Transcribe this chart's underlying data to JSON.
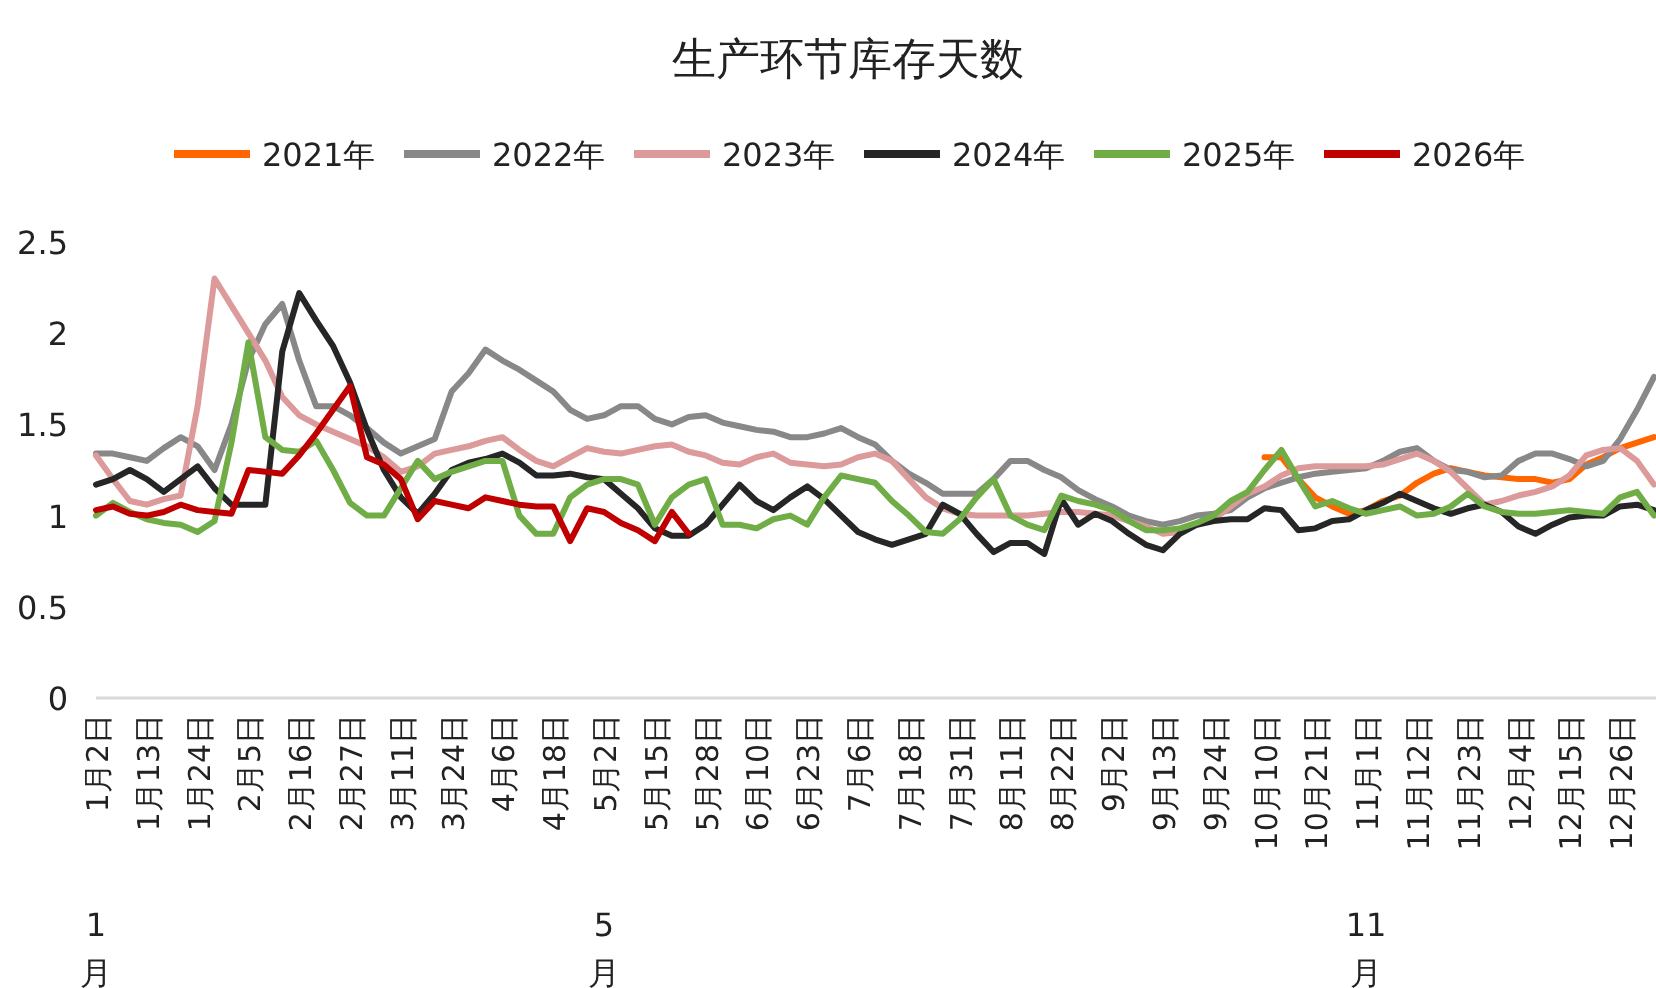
{
  "chart_data": {
    "type": "line",
    "title": "生产环节库存天数",
    "legend": "top",
    "categories": [
      "1月2日",
      null,
      null,
      "1月13日",
      null,
      null,
      "1月24日",
      null,
      null,
      "2月5日",
      null,
      null,
      "2月16日",
      null,
      null,
      "2月27日",
      null,
      null,
      "3月11日",
      null,
      null,
      "3月24日",
      null,
      null,
      "4月6日",
      null,
      null,
      "4月18日",
      null,
      null,
      "5月2日",
      null,
      null,
      "5月15日",
      null,
      null,
      "5月28日",
      null,
      null,
      "6月10日",
      null,
      null,
      "6月23日",
      null,
      null,
      "7月6日",
      null,
      null,
      "7月18日",
      null,
      null,
      "7月31日",
      null,
      null,
      "8月11日",
      null,
      null,
      "8月22日",
      null,
      null,
      "9月2日",
      null,
      null,
      "9月13日",
      null,
      null,
      "9月24日",
      null,
      null,
      "10月10日",
      null,
      null,
      "10月21日",
      null,
      null,
      "11月1日",
      null,
      null,
      "11月12日",
      null,
      null,
      "11月23日",
      null,
      null,
      "12月4日",
      null,
      null,
      "12月15日",
      null,
      null,
      "12月26日",
      null,
      null
    ],
    "ylim": [
      0,
      2.5
    ],
    "yticks": [
      0,
      0.5,
      1,
      1.5,
      2,
      2.5
    ],
    "line_style": "solid",
    "marker": "none",
    "annotations": [
      "1月",
      "5月",
      "11月"
    ],
    "series": [
      {
        "name": "2021年",
        "color": "#ff6600",
        "values": [
          null,
          null,
          null,
          null,
          null,
          null,
          null,
          null,
          null,
          null,
          null,
          null,
          null,
          null,
          null,
          null,
          null,
          null,
          null,
          null,
          null,
          null,
          null,
          null,
          null,
          null,
          null,
          null,
          null,
          null,
          null,
          null,
          null,
          null,
          null,
          null,
          null,
          null,
          null,
          null,
          null,
          null,
          null,
          null,
          null,
          null,
          null,
          null,
          null,
          null,
          null,
          null,
          null,
          null,
          null,
          null,
          null,
          null,
          null,
          null,
          null,
          null,
          null,
          null,
          null,
          null,
          null,
          null,
          null,
          1.32,
          1.32,
          1.2,
          1.1,
          1.05,
          1.01,
          1.03,
          1.08,
          1.11,
          1.18,
          1.23,
          1.26,
          1.24,
          1.22,
          1.21,
          1.2,
          1.2,
          1.18,
          1.2,
          1.28,
          1.32,
          1.37,
          1.4,
          1.43
        ]
      },
      {
        "name": "2022年",
        "color": "#888888",
        "values": [
          1.34,
          1.34,
          1.32,
          1.3,
          1.37,
          1.43,
          1.38,
          1.25,
          1.5,
          1.85,
          2.05,
          2.16,
          1.85,
          1.6,
          1.6,
          1.55,
          1.48,
          1.4,
          1.34,
          1.38,
          1.42,
          1.68,
          1.78,
          1.91,
          1.85,
          1.8,
          1.74,
          1.68,
          1.58,
          1.53,
          1.55,
          1.6,
          1.6,
          1.53,
          1.5,
          1.54,
          1.55,
          1.51,
          1.49,
          1.47,
          1.46,
          1.43,
          1.43,
          1.45,
          1.48,
          1.43,
          1.39,
          1.3,
          1.23,
          1.18,
          1.12,
          1.12,
          1.12,
          1.2,
          1.3,
          1.3,
          1.25,
          1.21,
          1.14,
          1.09,
          1.05,
          1.0,
          0.97,
          0.95,
          0.97,
          1.0,
          1.01,
          1.03,
          1.1,
          1.15,
          1.18,
          1.21,
          1.23,
          1.24,
          1.25,
          1.26,
          1.3,
          1.35,
          1.37,
          1.3,
          1.25,
          1.24,
          1.21,
          1.22,
          1.3,
          1.34,
          1.34,
          1.31,
          1.27,
          1.3,
          1.42,
          1.58,
          1.76
        ]
      },
      {
        "name": "2023年",
        "color": "#dc9a9a",
        "values": [
          1.33,
          1.2,
          1.08,
          1.06,
          1.09,
          1.11,
          1.6,
          2.3,
          2.15,
          2.0,
          1.85,
          1.65,
          1.55,
          1.5,
          1.46,
          1.42,
          1.38,
          1.32,
          1.24,
          1.27,
          1.34,
          1.36,
          1.38,
          1.41,
          1.43,
          1.36,
          1.3,
          1.27,
          1.32,
          1.37,
          1.35,
          1.34,
          1.36,
          1.38,
          1.39,
          1.35,
          1.33,
          1.29,
          1.28,
          1.32,
          1.34,
          1.29,
          1.28,
          1.27,
          1.28,
          1.32,
          1.34,
          1.3,
          1.2,
          1.1,
          1.04,
          1.01,
          1.0,
          1.0,
          1.0,
          1.0,
          1.01,
          1.02,
          1.02,
          1.01,
          1.0,
          0.97,
          0.94,
          0.9,
          0.91,
          0.95,
          0.98,
          1.05,
          1.12,
          1.16,
          1.22,
          1.26,
          1.27,
          1.27,
          1.27,
          1.27,
          1.28,
          1.31,
          1.34,
          1.3,
          1.24,
          1.15,
          1.06,
          1.08,
          1.11,
          1.13,
          1.16,
          1.22,
          1.33,
          1.36,
          1.37,
          1.3,
          1.17
        ]
      },
      {
        "name": "2024年",
        "color": "#262626",
        "values": [
          1.17,
          1.2,
          1.25,
          1.2,
          1.13,
          1.2,
          1.27,
          1.15,
          1.06,
          1.06,
          1.06,
          1.9,
          2.22,
          2.07,
          1.93,
          1.73,
          1.47,
          1.25,
          1.1,
          1.01,
          1.12,
          1.25,
          1.29,
          1.31,
          1.34,
          1.29,
          1.22,
          1.22,
          1.23,
          1.21,
          1.2,
          1.12,
          1.04,
          0.93,
          0.89,
          0.89,
          0.95,
          1.06,
          1.17,
          1.08,
          1.03,
          1.1,
          1.16,
          1.09,
          1.0,
          0.91,
          0.87,
          0.84,
          0.87,
          0.9,
          1.06,
          1.01,
          0.9,
          0.8,
          0.85,
          0.85,
          0.79,
          1.09,
          0.95,
          1.01,
          0.97,
          0.9,
          0.84,
          0.81,
          0.9,
          0.95,
          0.97,
          0.98,
          0.98,
          1.04,
          1.03,
          0.92,
          0.93,
          0.97,
          0.98,
          1.03,
          1.07,
          1.12,
          1.08,
          1.04,
          1.01,
          1.04,
          1.06,
          1.02,
          0.94,
          0.9,
          0.95,
          0.99,
          1.0,
          1.0,
          1.05,
          1.06,
          1.03
        ]
      },
      {
        "name": "2025年",
        "color": "#70ad47",
        "values": [
          1.0,
          1.07,
          1.02,
          0.98,
          0.96,
          0.95,
          0.91,
          0.97,
          1.4,
          1.95,
          1.43,
          1.36,
          1.35,
          1.41,
          1.25,
          1.07,
          1.0,
          1.0,
          1.15,
          1.3,
          1.2,
          1.24,
          1.27,
          1.3,
          1.3,
          1.0,
          0.9,
          0.9,
          1.1,
          1.17,
          1.2,
          1.2,
          1.17,
          0.95,
          1.1,
          1.17,
          1.2,
          0.95,
          0.95,
          0.93,
          0.98,
          1.0,
          0.95,
          1.1,
          1.22,
          1.2,
          1.18,
          1.08,
          1.0,
          0.91,
          0.9,
          0.98,
          1.1,
          1.2,
          1.0,
          0.95,
          0.92,
          1.11,
          1.08,
          1.06,
          1.03,
          0.97,
          0.92,
          0.92,
          0.93,
          0.96,
          1.0,
          1.08,
          1.13,
          1.25,
          1.36,
          1.2,
          1.05,
          1.08,
          1.04,
          1.01,
          1.03,
          1.05,
          1.0,
          1.01,
          1.05,
          1.12,
          1.05,
          1.02,
          1.01,
          1.01,
          1.02,
          1.03,
          1.02,
          1.01,
          1.1,
          1.13,
          1.0
        ]
      },
      {
        "name": "2026年",
        "color": "#c00000",
        "values": [
          1.03,
          1.05,
          1.01,
          1.0,
          1.02,
          1.06,
          1.03,
          1.02,
          1.01,
          1.25,
          1.24,
          1.23,
          1.33,
          1.45,
          1.58,
          1.71,
          1.32,
          1.28,
          1.2,
          0.98,
          1.08,
          1.06,
          1.04,
          1.1,
          1.08,
          1.06,
          1.05,
          1.05,
          0.86,
          1.04,
          1.02,
          0.96,
          0.92,
          0.86,
          1.02,
          0.9,
          null,
          null,
          null,
          null,
          null,
          null,
          null,
          null,
          null,
          null,
          null,
          null,
          null,
          null,
          null,
          null,
          null,
          null,
          null,
          null,
          null,
          null,
          null,
          null,
          null,
          null,
          null,
          null,
          null,
          null,
          null,
          null,
          null,
          null,
          null,
          null,
          null,
          null,
          null,
          null,
          null,
          null,
          null,
          null,
          null,
          null,
          null,
          null,
          null,
          null,
          null,
          null,
          null,
          null,
          null,
          null,
          null
        ]
      }
    ]
  }
}
